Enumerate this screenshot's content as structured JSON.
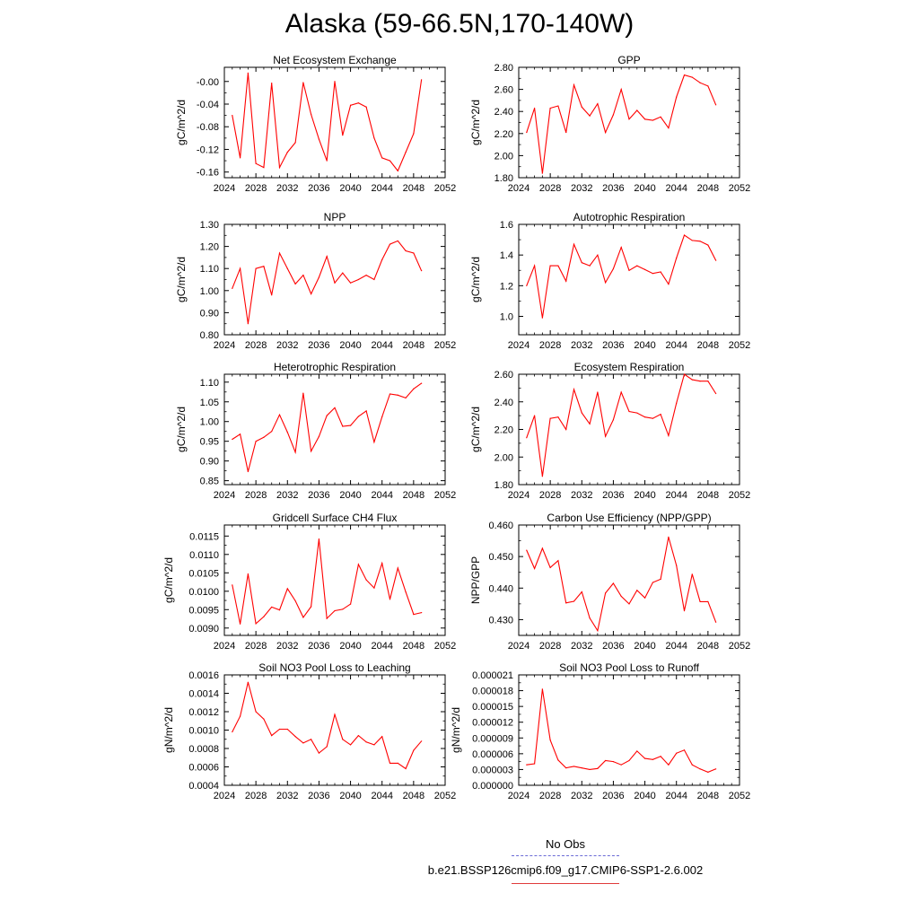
{
  "title": "Alaska (59-66.5N,170-140W)",
  "legend": {
    "obs_label": "No Obs",
    "model_label": "b.e21.BSSP126cmip6.f09_g17.CMIP6-SSP1-2.6.002",
    "obs_color": "#6b6bd6",
    "model_color": "#e03b3b"
  },
  "chart_data": [
    {
      "type": "line",
      "title": "Net Ecosystem Exchange",
      "ylabel": "gC/m^2/d",
      "xlim": [
        2024,
        2052
      ],
      "xticks": [
        2024,
        2028,
        2032,
        2036,
        2040,
        2044,
        2048,
        2052
      ],
      "ylim": [
        -0.17,
        0.025
      ],
      "yticks": [
        -0.16,
        -0.12,
        -0.08,
        -0.04,
        0.0
      ],
      "ytick_labels": [
        "-0.16",
        "-0.12",
        "-0.08",
        "-0.04",
        "-0.00"
      ],
      "x": [
        2025,
        2026,
        2027,
        2028,
        2029,
        2030,
        2031,
        2032,
        2033,
        2034,
        2035,
        2036,
        2037,
        2038,
        2039,
        2040,
        2041,
        2042,
        2043,
        2044,
        2045,
        2046,
        2047,
        2048,
        2049
      ],
      "values": [
        -0.06,
        -0.135,
        0.015,
        -0.145,
        -0.152,
        -0.003,
        -0.152,
        -0.125,
        -0.108,
        -0.002,
        -0.058,
        -0.102,
        -0.14,
        0.0,
        -0.095,
        -0.042,
        -0.038,
        -0.045,
        -0.1,
        -0.135,
        -0.14,
        -0.158,
        -0.125,
        -0.092,
        0.003
      ],
      "color": "#ff0000"
    },
    {
      "type": "line",
      "title": "GPP",
      "ylabel": "gC/m^2/d",
      "xlim": [
        2024,
        2052
      ],
      "xticks": [
        2024,
        2028,
        2032,
        2036,
        2040,
        2044,
        2048,
        2052
      ],
      "ylim": [
        1.8,
        2.8
      ],
      "yticks": [
        1.8,
        2.0,
        2.2,
        2.4,
        2.6,
        2.8
      ],
      "ytick_labels": [
        "1.80",
        "2.00",
        "2.20",
        "2.40",
        "2.60",
        "2.80"
      ],
      "x": [
        2025,
        2026,
        2027,
        2028,
        2029,
        2030,
        2031,
        2032,
        2033,
        2034,
        2035,
        2036,
        2037,
        2038,
        2039,
        2040,
        2041,
        2042,
        2043,
        2044,
        2045,
        2046,
        2047,
        2048,
        2049
      ],
      "values": [
        2.21,
        2.43,
        1.84,
        2.43,
        2.45,
        2.21,
        2.64,
        2.44,
        2.36,
        2.47,
        2.21,
        2.37,
        2.6,
        2.33,
        2.41,
        2.33,
        2.32,
        2.35,
        2.25,
        2.53,
        2.73,
        2.71,
        2.66,
        2.63,
        2.46
      ],
      "color": "#ff0000"
    },
    {
      "type": "line",
      "title": "NPP",
      "ylabel": "gC/m^2/d",
      "xlim": [
        2024,
        2052
      ],
      "xticks": [
        2024,
        2028,
        2032,
        2036,
        2040,
        2044,
        2048,
        2052
      ],
      "ylim": [
        0.8,
        1.3
      ],
      "yticks": [
        0.8,
        0.9,
        1.0,
        1.1,
        1.2,
        1.3
      ],
      "ytick_labels": [
        "0.80",
        "0.90",
        "1.00",
        "1.10",
        "1.20",
        "1.30"
      ],
      "x": [
        2025,
        2026,
        2027,
        2028,
        2029,
        2030,
        2031,
        2032,
        2033,
        2034,
        2035,
        2036,
        2037,
        2038,
        2039,
        2040,
        2041,
        2042,
        2043,
        2044,
        2045,
        2046,
        2047,
        2048,
        2049
      ],
      "values": [
        1.01,
        1.1,
        0.85,
        1.1,
        1.11,
        0.98,
        1.17,
        1.1,
        1.03,
        1.07,
        0.985,
        1.06,
        1.155,
        1.035,
        1.08,
        1.035,
        1.05,
        1.07,
        1.05,
        1.14,
        1.21,
        1.225,
        1.18,
        1.17,
        1.09
      ],
      "color": "#ff0000"
    },
    {
      "type": "line",
      "title": "Autotrophic Respiration",
      "ylabel": "gC/m^2/d",
      "xlim": [
        2024,
        2052
      ],
      "xticks": [
        2024,
        2028,
        2032,
        2036,
        2040,
        2044,
        2048,
        2052
      ],
      "ylim": [
        0.88,
        1.6
      ],
      "yticks": [
        1.0,
        1.2,
        1.4,
        1.6
      ],
      "ytick_labels": [
        "1.0",
        "1.2",
        "1.4",
        "1.6"
      ],
      "x": [
        2025,
        2026,
        2027,
        2028,
        2029,
        2030,
        2031,
        2032,
        2033,
        2034,
        2035,
        2036,
        2037,
        2038,
        2039,
        2040,
        2041,
        2042,
        2043,
        2044,
        2045,
        2046,
        2047,
        2048,
        2049
      ],
      "values": [
        1.2,
        1.33,
        0.99,
        1.33,
        1.33,
        1.23,
        1.47,
        1.35,
        1.33,
        1.4,
        1.22,
        1.31,
        1.45,
        1.3,
        1.33,
        1.305,
        1.28,
        1.29,
        1.21,
        1.38,
        1.53,
        1.495,
        1.49,
        1.465,
        1.365
      ],
      "color": "#ff0000"
    },
    {
      "type": "line",
      "title": "Heterotrophic Respiration",
      "ylabel": "gC/m^2/d",
      "xlim": [
        2024,
        2052
      ],
      "xticks": [
        2024,
        2028,
        2032,
        2036,
        2040,
        2044,
        2048,
        2052
      ],
      "ylim": [
        0.84,
        1.12
      ],
      "yticks": [
        0.85,
        0.9,
        0.95,
        1.0,
        1.05,
        1.1
      ],
      "ytick_labels": [
        "0.85",
        "0.90",
        "0.95",
        "1.00",
        "1.05",
        "1.10"
      ],
      "x": [
        2025,
        2026,
        2027,
        2028,
        2029,
        2030,
        2031,
        2032,
        2033,
        2034,
        2035,
        2036,
        2037,
        2038,
        2039,
        2040,
        2041,
        2042,
        2043,
        2044,
        2045,
        2046,
        2047,
        2048,
        2049
      ],
      "values": [
        0.955,
        0.968,
        0.873,
        0.95,
        0.96,
        0.975,
        1.017,
        0.973,
        0.922,
        1.072,
        0.925,
        0.962,
        1.015,
        1.035,
        0.988,
        0.99,
        1.013,
        1.027,
        0.948,
        1.012,
        1.07,
        1.067,
        1.06,
        1.083,
        1.097
      ],
      "color": "#ff0000"
    },
    {
      "type": "line",
      "title": "Ecosystem Respiration",
      "ylabel": "gC/m^2/d",
      "xlim": [
        2024,
        2052
      ],
      "xticks": [
        2024,
        2028,
        2032,
        2036,
        2040,
        2044,
        2048,
        2052
      ],
      "ylim": [
        1.8,
        2.6
      ],
      "yticks": [
        1.8,
        2.0,
        2.2,
        2.4,
        2.6
      ],
      "ytick_labels": [
        "1.80",
        "2.00",
        "2.20",
        "2.40",
        "2.60"
      ],
      "x": [
        2025,
        2026,
        2027,
        2028,
        2029,
        2030,
        2031,
        2032,
        2033,
        2034,
        2035,
        2036,
        2037,
        2038,
        2039,
        2040,
        2041,
        2042,
        2043,
        2044,
        2045,
        2046,
        2047,
        2048,
        2049
      ],
      "values": [
        2.14,
        2.3,
        1.86,
        2.28,
        2.29,
        2.2,
        2.49,
        2.32,
        2.24,
        2.47,
        2.15,
        2.27,
        2.47,
        2.33,
        2.32,
        2.29,
        2.28,
        2.31,
        2.155,
        2.39,
        2.6,
        2.56,
        2.55,
        2.55,
        2.46
      ],
      "color": "#ff0000"
    },
    {
      "type": "line",
      "title": "Gridcell Surface CH4 Flux",
      "ylabel": "gC/m^2/d",
      "xlim": [
        2024,
        2052
      ],
      "xticks": [
        2024,
        2028,
        2032,
        2036,
        2040,
        2044,
        2048,
        2052
      ],
      "ylim": [
        0.0088,
        0.0118
      ],
      "yticks": [
        0.009,
        0.0095,
        0.01,
        0.0105,
        0.011,
        0.0115
      ],
      "ytick_labels": [
        "0.0090",
        "0.0095",
        "0.0100",
        "0.0105",
        "0.0110",
        "0.0115"
      ],
      "x": [
        2025,
        2026,
        2027,
        2028,
        2029,
        2030,
        2031,
        2032,
        2033,
        2034,
        2035,
        2036,
        2037,
        2038,
        2039,
        2040,
        2041,
        2042,
        2043,
        2044,
        2045,
        2046,
        2047,
        2048,
        2049
      ],
      "values": [
        0.01017,
        0.00911,
        0.01047,
        0.00912,
        0.00931,
        0.00957,
        0.00949,
        0.01007,
        0.00974,
        0.00929,
        0.00958,
        0.01142,
        0.00926,
        0.00947,
        0.00951,
        0.00965,
        0.01073,
        0.01031,
        0.01009,
        0.01076,
        0.00978,
        0.01063,
        0.00998,
        0.00937,
        0.00942
      ],
      "color": "#ff0000"
    },
    {
      "type": "line",
      "title": "Carbon Use Efficiency (NPP/GPP)",
      "ylabel": "NPP/GPP",
      "xlim": [
        2024,
        2052
      ],
      "xticks": [
        2024,
        2028,
        2032,
        2036,
        2040,
        2044,
        2048,
        2052
      ],
      "ylim": [
        0.425,
        0.46
      ],
      "yticks": [
        0.43,
        0.44,
        0.45,
        0.46
      ],
      "ytick_labels": [
        "0.430",
        "0.440",
        "0.450",
        "0.460"
      ],
      "x": [
        2025,
        2026,
        2027,
        2028,
        2029,
        2030,
        2031,
        2032,
        2033,
        2034,
        2035,
        2036,
        2037,
        2038,
        2039,
        2040,
        2041,
        2042,
        2043,
        2044,
        2045,
        2046,
        2047,
        2048,
        2049
      ],
      "values": [
        0.452,
        0.4462,
        0.4526,
        0.4465,
        0.4487,
        0.4353,
        0.4358,
        0.4388,
        0.4305,
        0.4265,
        0.4384,
        0.4415,
        0.4374,
        0.435,
        0.4393,
        0.4369,
        0.4418,
        0.4428,
        0.4562,
        0.4472,
        0.4328,
        0.4444,
        0.4357,
        0.4357,
        0.4292
      ],
      "color": "#ff0000"
    },
    {
      "type": "line",
      "title": "Soil NO3 Pool Loss to Leaching",
      "ylabel": "gN/m^2/d",
      "xlim": [
        2024,
        2052
      ],
      "xticks": [
        2024,
        2028,
        2032,
        2036,
        2040,
        2044,
        2048,
        2052
      ],
      "ylim": [
        0.0004,
        0.0016
      ],
      "yticks": [
        0.0004,
        0.0006,
        0.0008,
        0.001,
        0.0012,
        0.0014,
        0.0016
      ],
      "ytick_labels": [
        "0.0004",
        "0.0006",
        "0.0008",
        "0.0010",
        "0.0012",
        "0.0014",
        "0.0016"
      ],
      "x": [
        2025,
        2026,
        2027,
        2028,
        2029,
        2030,
        2031,
        2032,
        2033,
        2034,
        2035,
        2036,
        2037,
        2038,
        2039,
        2040,
        2041,
        2042,
        2043,
        2044,
        2045,
        2046,
        2047,
        2048,
        2049
      ],
      "values": [
        0.00098,
        0.00115,
        0.00152,
        0.0012,
        0.00112,
        0.00094,
        0.00101,
        0.00101,
        0.00093,
        0.00086,
        0.0009,
        0.00075,
        0.00082,
        0.00117,
        0.0009,
        0.00084,
        0.00094,
        0.00087,
        0.00084,
        0.00093,
        0.00064,
        0.00064,
        0.00058,
        0.00078,
        0.00088
      ],
      "color": "#ff0000"
    },
    {
      "type": "line",
      "title": "Soil NO3 Pool Loss to Runoff",
      "ylabel": "gN/m^2/d",
      "xlim": [
        2024,
        2052
      ],
      "xticks": [
        2024,
        2028,
        2032,
        2036,
        2040,
        2044,
        2048,
        2052
      ],
      "ylim": [
        0.0,
        2.1e-05
      ],
      "yticks": [
        0.0,
        3e-06,
        6e-06,
        9e-06,
        1.2e-05,
        1.5e-05,
        1.8e-05,
        2.1e-05
      ],
      "ytick_labels": [
        "0.000000",
        "0.000003",
        "0.000006",
        "0.000009",
        "0.000012",
        "0.000015",
        "0.000018",
        "0.000021"
      ],
      "x": [
        2025,
        2026,
        2027,
        2028,
        2029,
        2030,
        2031,
        2032,
        2033,
        2034,
        2035,
        2036,
        2037,
        2038,
        2039,
        2040,
        2041,
        2042,
        2043,
        2044,
        2045,
        2046,
        2047,
        2048,
        2049
      ],
      "values": [
        3.9e-06,
        4.1e-06,
        1.83e-05,
        8.6e-06,
        4.8e-06,
        3.3e-06,
        3.6e-06,
        3.3e-06,
        3e-06,
        3.2e-06,
        4.7e-06,
        4.5e-06,
        3.9e-06,
        4.7e-06,
        6.5e-06,
        5.1e-06,
        4.9e-06,
        5.5e-06,
        3.9e-06,
        6.1e-06,
        6.7e-06,
        3.9e-06,
        3.1e-06,
        2.5e-06,
        3.1e-06
      ],
      "color": "#ff0000"
    }
  ]
}
